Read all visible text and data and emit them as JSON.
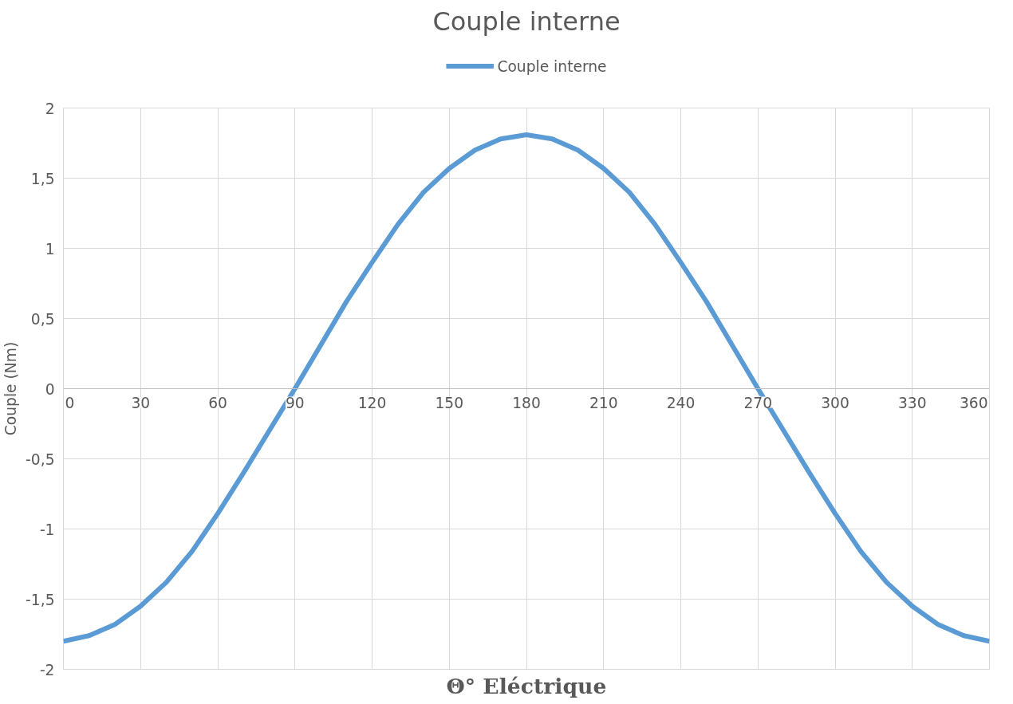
{
  "chart_data": {
    "type": "line",
    "title": "Couple interne",
    "xlabel": "Θ° Eléctrique",
    "ylabel": "Couple (Nm)",
    "x": [
      0,
      10,
      20,
      30,
      40,
      50,
      60,
      70,
      80,
      90,
      100,
      110,
      120,
      130,
      140,
      150,
      160,
      170,
      180,
      190,
      200,
      210,
      220,
      230,
      240,
      250,
      260,
      270,
      280,
      290,
      300,
      310,
      320,
      330,
      340,
      350,
      360
    ],
    "series": [
      {
        "name": "Couple interne",
        "color": "#5b9bd5",
        "values": [
          -1.8,
          -1.76,
          -1.68,
          -1.55,
          -1.38,
          -1.16,
          -0.89,
          -0.6,
          -0.3,
          0.0,
          0.31,
          0.62,
          0.9,
          1.17,
          1.4,
          1.57,
          1.7,
          1.78,
          1.81,
          1.78,
          1.7,
          1.57,
          1.4,
          1.17,
          0.9,
          0.62,
          0.31,
          0.0,
          -0.3,
          -0.6,
          -0.89,
          -1.16,
          -1.38,
          -1.55,
          -1.68,
          -1.76,
          -1.8
        ]
      }
    ],
    "xlim": [
      0,
      360
    ],
    "xticks": [
      0,
      30,
      60,
      90,
      120,
      150,
      180,
      210,
      240,
      270,
      300,
      330,
      360
    ],
    "ylim": [
      -2,
      2
    ],
    "yticks": [
      {
        "value": -2,
        "label": "-2"
      },
      {
        "value": -1.5,
        "label": "-1,5"
      },
      {
        "value": -1,
        "label": "-1"
      },
      {
        "value": -0.5,
        "label": "-0,5"
      },
      {
        "value": 0,
        "label": "0"
      },
      {
        "value": 0.5,
        "label": "0,5"
      },
      {
        "value": 1,
        "label": "1"
      },
      {
        "value": 1.5,
        "label": "1,5"
      },
      {
        "value": 2,
        "label": "2"
      }
    ],
    "grid": true,
    "legend": "top",
    "marker": "none",
    "line_style": "solid"
  }
}
